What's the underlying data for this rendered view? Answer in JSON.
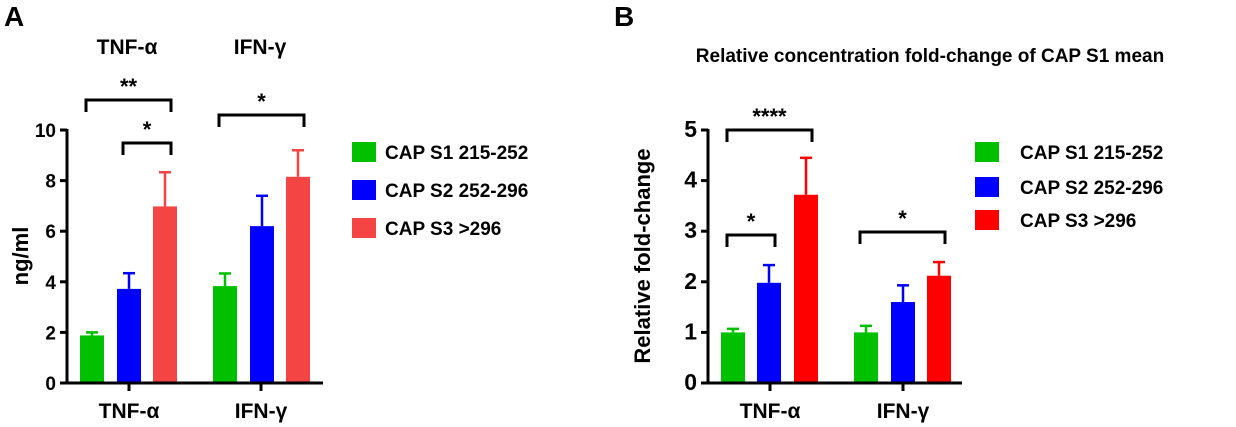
{
  "chart_data": [
    {
      "panel": "A",
      "type": "bar",
      "title": "",
      "top_labels": [
        "TNF-α",
        "IFN-γ"
      ],
      "categories": [
        "TNF-α",
        "IFN-γ"
      ],
      "ylabel": "ng/ml",
      "xlabel": "",
      "ylim": [
        0,
        10
      ],
      "yticks": [
        0,
        2,
        4,
        6,
        8,
        10
      ],
      "grid": false,
      "legend": "right",
      "series": [
        {
          "name": "CAP S1 215-252",
          "color": "#00c000",
          "values": [
            1.88,
            3.83
          ],
          "errors": [
            0.12,
            0.5
          ]
        },
        {
          "name": "CAP S2 252-296",
          "color": "#0000ff",
          "values": [
            3.72,
            6.2
          ],
          "errors": [
            0.62,
            1.2
          ]
        },
        {
          "name": "CAP S3 >296",
          "color": "#f44444",
          "values": [
            6.98,
            8.15
          ],
          "errors": [
            1.35,
            1.05
          ]
        }
      ],
      "significance": [
        {
          "category": 0,
          "from": 0,
          "to": 2,
          "label": "**"
        },
        {
          "category": 0,
          "from": 1,
          "to": 2,
          "label": "*"
        },
        {
          "category": 1,
          "from": 0,
          "to": 2,
          "label": "*"
        }
      ]
    },
    {
      "panel": "B",
      "type": "bar",
      "title": "Relative concentration fold-change of CAP S1 mean",
      "categories": [
        "TNF-α",
        "IFN-γ"
      ],
      "ylabel": "Relative  fold-change",
      "xlabel": "",
      "ylim": [
        0,
        5
      ],
      "yticks": [
        0,
        1,
        2,
        3,
        4,
        5
      ],
      "grid": false,
      "legend": "right",
      "series": [
        {
          "name": "CAP S1 215-252",
          "color": "#00c000",
          "values": [
            1.0,
            1.0
          ],
          "errors": [
            0.07,
            0.13
          ]
        },
        {
          "name": "CAP S2 252-296",
          "color": "#0000ff",
          "values": [
            1.98,
            1.6
          ],
          "errors": [
            0.35,
            0.33
          ]
        },
        {
          "name": "CAP S3 >296",
          "color": "#ff0000",
          "values": [
            3.72,
            2.12
          ],
          "errors": [
            0.73,
            0.27
          ]
        }
      ],
      "significance": [
        {
          "category": 0,
          "from": 0,
          "to": 2,
          "label": "****"
        },
        {
          "category": 0,
          "from": 0,
          "to": 1,
          "label": "*"
        },
        {
          "category": 1,
          "from": 0,
          "to": 2,
          "label": "*"
        }
      ]
    }
  ]
}
